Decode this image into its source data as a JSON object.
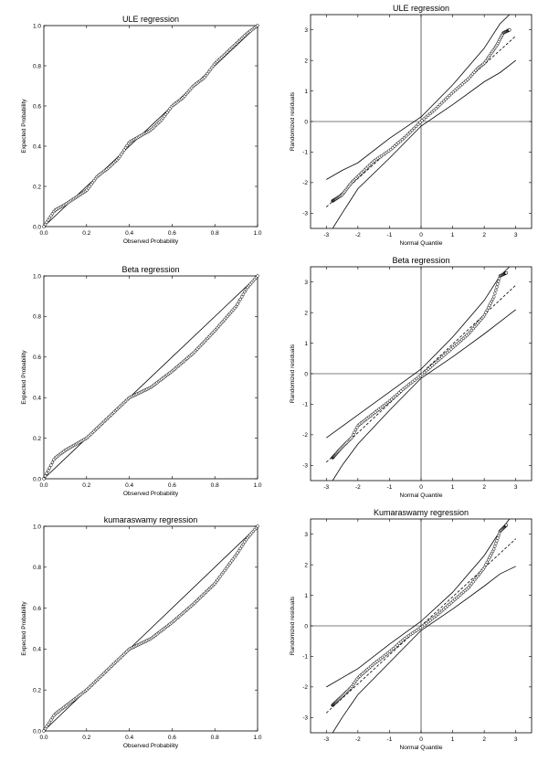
{
  "chart_data": [
    {
      "type": "scatter",
      "title": "ULE regression",
      "xlabel": "Observed Probability",
      "ylabel": "Expected Probability",
      "xlim": [
        0.0,
        1.0
      ],
      "ylim": [
        0.0,
        1.0
      ],
      "xticks": [
        "0.0",
        "0.2",
        "0.4",
        "0.6",
        "0.8",
        "1.0"
      ],
      "yticks": [
        "0.0",
        "0.2",
        "0.4",
        "0.6",
        "0.8",
        "1.0"
      ],
      "reference_line": "y = x",
      "series": [
        {
          "x": [
            0,
            0.05,
            0.1,
            0.2,
            0.25,
            0.3,
            0.35,
            0.4,
            0.5,
            0.55,
            0.6,
            0.65,
            0.7,
            0.75,
            0.8,
            0.9,
            0.95,
            1.0
          ],
          "values": [
            0,
            0.08,
            0.11,
            0.18,
            0.25,
            0.29,
            0.34,
            0.42,
            0.48,
            0.53,
            0.6,
            0.64,
            0.7,
            0.74,
            0.81,
            0.91,
            0.96,
            1.0
          ]
        }
      ]
    },
    {
      "type": "scatter",
      "title": "ULE regression",
      "xlabel": "Normal Quantile",
      "ylabel": "Randomized residuals",
      "xlim": [
        -3.5,
        3.5
      ],
      "ylim": [
        -3.5,
        3.5
      ],
      "xticks": [
        "-3",
        "-2",
        "-1",
        "0",
        "1",
        "2",
        "3"
      ],
      "yticks": [
        "-3",
        "-2",
        "-1",
        "0",
        "1",
        "2",
        "3"
      ],
      "series": [
        {
          "x": [
            -2.8,
            -2.5,
            -2.2,
            -2.0,
            -1.8,
            -1.5,
            -1.0,
            -0.5,
            0,
            0.5,
            1.0,
            1.5,
            1.8,
            2.0,
            2.2,
            2.4,
            2.6,
            2.8
          ],
          "values": [
            -2.6,
            -2.4,
            -2.0,
            -1.8,
            -1.6,
            -1.3,
            -0.95,
            -0.5,
            0,
            0.45,
            0.95,
            1.4,
            1.75,
            1.9,
            2.2,
            2.5,
            2.9,
            3.0
          ]
        },
        {
          "x": [
            -3.0,
            3.0
          ],
          "values": [
            -2.8,
            2.8
          ]
        },
        {
          "x": [
            -3.0,
            -2.5,
            -2.0,
            -1.0,
            0,
            1.0,
            2.0,
            2.5,
            2.8
          ],
          "values": [
            -1.9,
            -1.6,
            -1.35,
            -0.55,
            0.15,
            1.2,
            2.4,
            3.2,
            3.5
          ]
        },
        {
          "x": [
            -2.8,
            -2.5,
            -2.0,
            -1.0,
            0,
            1.0,
            2.0,
            2.5,
            3.0
          ],
          "values": [
            -3.5,
            -3.0,
            -2.2,
            -1.2,
            -0.15,
            0.55,
            1.3,
            1.6,
            2.0
          ]
        }
      ]
    },
    {
      "type": "scatter",
      "title": "Beta regression",
      "xlabel": "Observed Probability",
      "ylabel": "Expected Probability",
      "xlim": [
        0.0,
        1.0
      ],
      "ylim": [
        0.0,
        1.0
      ],
      "xticks": [
        "0.0",
        "0.2",
        "0.4",
        "0.6",
        "0.8",
        "1.0"
      ],
      "yticks": [
        "0.0",
        "0.2",
        "0.4",
        "0.6",
        "0.8",
        "1.0"
      ],
      "reference_line": "y = x",
      "series": [
        {
          "x": [
            0,
            0.05,
            0.1,
            0.2,
            0.3,
            0.4,
            0.5,
            0.6,
            0.7,
            0.8,
            0.9,
            0.95,
            1.0
          ],
          "values": [
            0,
            0.1,
            0.14,
            0.2,
            0.3,
            0.4,
            0.45,
            0.53,
            0.62,
            0.73,
            0.85,
            0.94,
            1.0
          ]
        }
      ]
    },
    {
      "type": "scatter",
      "title": "Beta regression",
      "xlabel": "Normal  Quantile",
      "ylabel": "Randomized residuals",
      "xlim": [
        -3.5,
        3.5
      ],
      "ylim": [
        -3.5,
        3.5
      ],
      "xticks": [
        "-3",
        "-2",
        "-1",
        "0",
        "1",
        "2",
        "3"
      ],
      "yticks": [
        "-3",
        "-2",
        "-1",
        "0",
        "1",
        "2",
        "3"
      ],
      "series": [
        {
          "x": [
            -2.8,
            -2.5,
            -2.2,
            -2.0,
            -1.5,
            -1.0,
            -0.5,
            0,
            0.5,
            1.0,
            1.5,
            2.0,
            2.3,
            2.5,
            2.7
          ],
          "values": [
            -2.75,
            -2.4,
            -2.1,
            -1.7,
            -1.3,
            -0.9,
            -0.45,
            -0.05,
            0.4,
            0.85,
            1.3,
            1.9,
            2.5,
            3.2,
            3.3
          ]
        },
        {
          "x": [
            -3.0,
            3.0
          ],
          "values": [
            -2.9,
            2.9
          ]
        },
        {
          "x": [
            -3.0,
            -2.0,
            -1.0,
            0,
            1.0,
            2.0,
            2.5,
            2.8
          ],
          "values": [
            -2.1,
            -1.35,
            -0.6,
            0.15,
            1.2,
            2.4,
            3.2,
            3.5
          ]
        },
        {
          "x": [
            -2.8,
            -2.5,
            -2.0,
            -1.0,
            0,
            1.0,
            2.0,
            2.5,
            3.0
          ],
          "values": [
            -3.5,
            -3.0,
            -2.3,
            -1.2,
            -0.15,
            0.55,
            1.3,
            1.7,
            2.1
          ]
        }
      ]
    },
    {
      "type": "scatter",
      "title": "kumaraswamy regression",
      "xlabel": "Observed Probability",
      "ylabel": "Expected Probability",
      "xlim": [
        0.0,
        1.0
      ],
      "ylim": [
        0.0,
        1.0
      ],
      "xticks": [
        "0.0",
        "0.2",
        "0.4",
        "0.6",
        "0.8",
        "1.0"
      ],
      "yticks": [
        "0.0",
        "0.2",
        "0.4",
        "0.6",
        "0.8",
        "1.0"
      ],
      "reference_line": "y = x",
      "series": [
        {
          "x": [
            0,
            0.05,
            0.1,
            0.2,
            0.3,
            0.4,
            0.5,
            0.6,
            0.7,
            0.8,
            0.9,
            0.95,
            1.0
          ],
          "values": [
            0,
            0.08,
            0.12,
            0.2,
            0.3,
            0.4,
            0.45,
            0.53,
            0.62,
            0.72,
            0.86,
            0.94,
            1.0
          ]
        }
      ]
    },
    {
      "type": "scatter",
      "title": "Kumaraswamy regression",
      "xlabel": "Normal  Quantile",
      "ylabel": "Randomized residuals",
      "xlim": [
        -3.5,
        3.5
      ],
      "ylim": [
        -3.5,
        3.5
      ],
      "xticks": [
        "-3",
        "-2",
        "-1",
        "0",
        "1",
        "2",
        "3"
      ],
      "yticks": [
        "-3",
        "-2",
        "-1",
        "0",
        "1",
        "2",
        "3"
      ],
      "series": [
        {
          "x": [
            -2.8,
            -2.5,
            -2.2,
            -2.0,
            -1.5,
            -1.0,
            -0.5,
            0,
            0.5,
            1.0,
            1.5,
            2.0,
            2.3,
            2.5,
            2.7
          ],
          "values": [
            -2.6,
            -2.3,
            -2.0,
            -1.7,
            -1.25,
            -0.85,
            -0.4,
            -0.05,
            0.35,
            0.8,
            1.25,
            1.9,
            2.5,
            3.1,
            3.3
          ]
        },
        {
          "x": [
            -3.0,
            3.0
          ],
          "values": [
            -2.85,
            2.85
          ]
        },
        {
          "x": [
            -3.0,
            -2.0,
            -1.0,
            0,
            1.0,
            2.0,
            2.5,
            2.8
          ],
          "values": [
            -2.0,
            -1.4,
            -0.6,
            0.15,
            1.1,
            2.3,
            3.1,
            3.5
          ]
        },
        {
          "x": [
            -2.8,
            -2.5,
            -2.0,
            -1.0,
            0,
            1.0,
            2.0,
            2.5,
            3.0
          ],
          "values": [
            -3.5,
            -3.0,
            -2.25,
            -1.2,
            -0.15,
            0.55,
            1.3,
            1.7,
            1.95
          ]
        }
      ]
    }
  ]
}
